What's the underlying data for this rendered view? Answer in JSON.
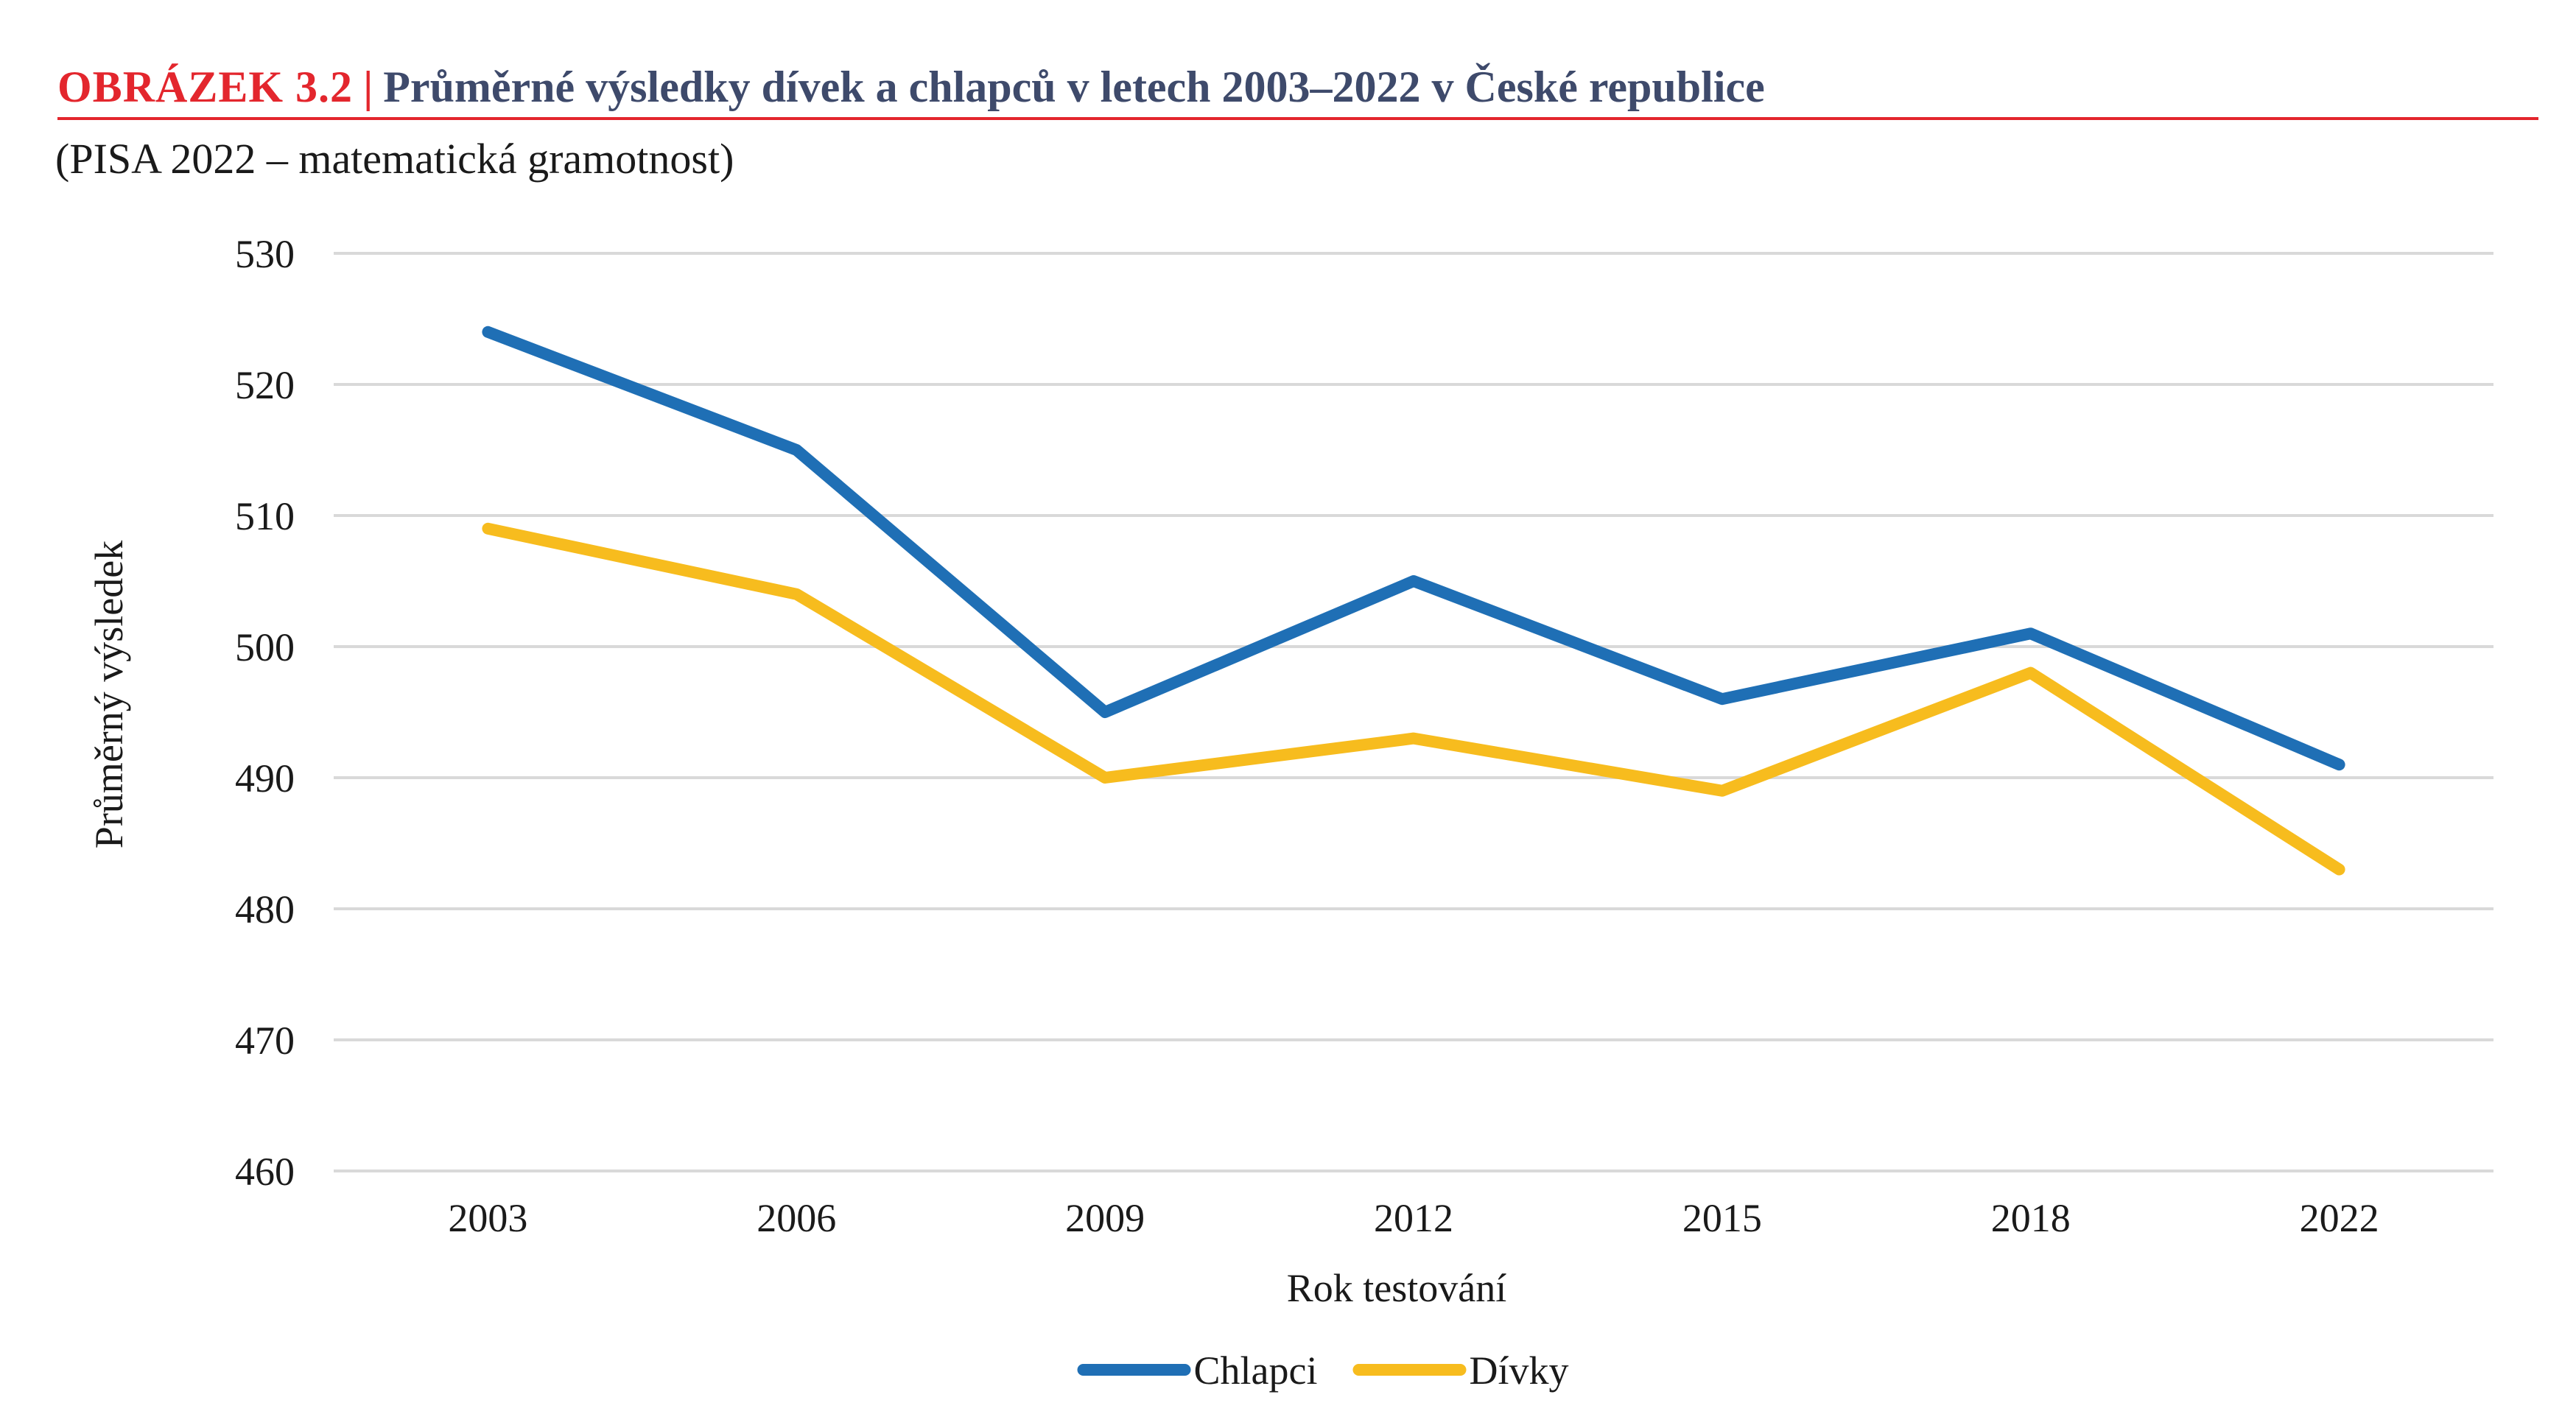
{
  "figure": {
    "label": "OBRÁZEK 3.2",
    "separator": "|",
    "title": "Průměrné výsledky dívek a chlapců v letech 2003–2022 v České republice",
    "subtitle": "(PISA 2022 – matematická gramotnost)"
  },
  "chart_data": {
    "type": "line",
    "title": "Průměrné výsledky dívek a chlapců v letech 2003–2022 v České republice",
    "subtitle": "(PISA 2022 – matematická gramotnost)",
    "xlabel": "Rok testování",
    "ylabel": "Průměrný výsledek",
    "categories": [
      "2003",
      "2006",
      "2009",
      "2012",
      "2015",
      "2018",
      "2022"
    ],
    "ylim": [
      460,
      530
    ],
    "yticks": [
      460,
      470,
      480,
      490,
      500,
      510,
      520,
      530
    ],
    "grid": true,
    "legend": "bottom-center",
    "series": [
      {
        "name": "Chlapci",
        "color": "#1f6fb5",
        "values": [
          524,
          515,
          495,
          505,
          496,
          501,
          491
        ]
      },
      {
        "name": "Dívky",
        "color": "#f7bc1e",
        "values": [
          509,
          504,
          490,
          493,
          489,
          498,
          483
        ]
      }
    ]
  }
}
